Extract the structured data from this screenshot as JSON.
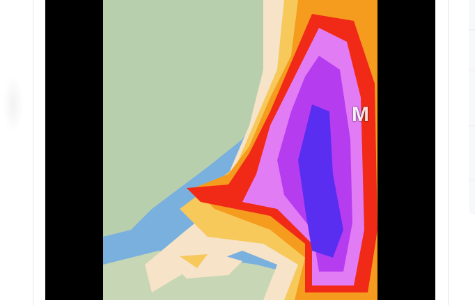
{
  "video": {
    "overlay_text": "M",
    "content": "weather-map"
  },
  "colors": {
    "sea": "#7ab0de",
    "land": "#b8cfae",
    "snow_light": "#f6e3c8",
    "snow_yellow": "#f7c85a",
    "snow_orange": "#f59b1d",
    "snow_red": "#f02a16",
    "snow_magenta": "#e27cf5",
    "snow_purple": "#b63cf0",
    "snow_blue": "#5a2ef0"
  }
}
